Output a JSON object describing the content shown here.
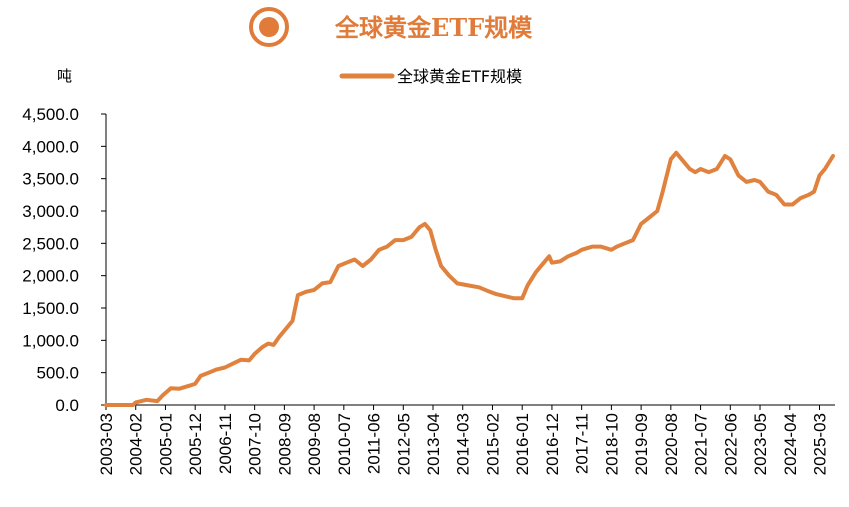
{
  "header": {
    "title": "全球黄金ETF规模",
    "accent_color": "#E07B39",
    "icon": "target-circle-icon"
  },
  "chart_data": {
    "type": "line",
    "title": "全球黄金ETF规模",
    "unit": "吨",
    "xlabel": "",
    "ylabel": "",
    "ylim": [
      0,
      4500
    ],
    "yticks": [
      "4,500.0",
      "4,000.0",
      "3,500.0",
      "3,000.0",
      "2,500.0",
      "2,000.0",
      "1,500.0",
      "1,000.0",
      "500.0",
      "0.0"
    ],
    "xticks": [
      "2003-03",
      "2004-02",
      "2005-01",
      "2005-12",
      "2006-11",
      "2007-10",
      "2008-09",
      "2009-08",
      "2010-07",
      "2011-06",
      "2012-05",
      "2013-04",
      "2014-03",
      "2015-02",
      "2016-01",
      "2016-12",
      "2017-11",
      "2018-10",
      "2019-09",
      "2020-08",
      "2021-07",
      "2022-06",
      "2023-05",
      "2024-04",
      "2025-03"
    ],
    "legend_position": "top",
    "grid": false,
    "series": [
      {
        "name": "全球黄金ETF规模",
        "color": "#E0823E",
        "points": [
          [
            "2003-03",
            0
          ],
          [
            "2004-01",
            0
          ],
          [
            "2004-02",
            40
          ],
          [
            "2004-06",
            80
          ],
          [
            "2004-10",
            60
          ],
          [
            "2004-12",
            150
          ],
          [
            "2005-03",
            260
          ],
          [
            "2005-06",
            250
          ],
          [
            "2005-10",
            300
          ],
          [
            "2005-12",
            330
          ],
          [
            "2006-02",
            450
          ],
          [
            "2006-05",
            500
          ],
          [
            "2006-08",
            550
          ],
          [
            "2006-11",
            580
          ],
          [
            "2007-02",
            640
          ],
          [
            "2007-05",
            700
          ],
          [
            "2007-08",
            690
          ],
          [
            "2007-10",
            790
          ],
          [
            "2008-01",
            900
          ],
          [
            "2008-03",
            950
          ],
          [
            "2008-05",
            930
          ],
          [
            "2008-07",
            1050
          ],
          [
            "2008-09",
            1150
          ],
          [
            "2008-12",
            1300
          ],
          [
            "2009-02",
            1700
          ],
          [
            "2009-05",
            1750
          ],
          [
            "2009-08",
            1780
          ],
          [
            "2009-11",
            1880
          ],
          [
            "2010-02",
            1900
          ],
          [
            "2010-05",
            2150
          ],
          [
            "2010-08",
            2200
          ],
          [
            "2010-11",
            2250
          ],
          [
            "2011-02",
            2150
          ],
          [
            "2011-05",
            2250
          ],
          [
            "2011-08",
            2400
          ],
          [
            "2011-11",
            2450
          ],
          [
            "2012-02",
            2550
          ],
          [
            "2012-05",
            2550
          ],
          [
            "2012-08",
            2600
          ],
          [
            "2012-11",
            2750
          ],
          [
            "2013-01",
            2800
          ],
          [
            "2013-03",
            2700
          ],
          [
            "2013-05",
            2400
          ],
          [
            "2013-07",
            2150
          ],
          [
            "2013-10",
            2000
          ],
          [
            "2014-01",
            1880
          ],
          [
            "2014-05",
            1850
          ],
          [
            "2014-09",
            1820
          ],
          [
            "2015-01",
            1750
          ],
          [
            "2015-03",
            1720
          ],
          [
            "2015-07",
            1680
          ],
          [
            "2015-10",
            1650
          ],
          [
            "2016-01",
            1650
          ],
          [
            "2016-03",
            1850
          ],
          [
            "2016-06",
            2050
          ],
          [
            "2016-09",
            2200
          ],
          [
            "2016-11",
            2300
          ],
          [
            "2016-12",
            2200
          ],
          [
            "2017-03",
            2220
          ],
          [
            "2017-06",
            2300
          ],
          [
            "2017-09",
            2350
          ],
          [
            "2017-11",
            2400
          ],
          [
            "2018-03",
            2450
          ],
          [
            "2018-06",
            2450
          ],
          [
            "2018-10",
            2400
          ],
          [
            "2018-12",
            2450
          ],
          [
            "2019-03",
            2500
          ],
          [
            "2019-06",
            2550
          ],
          [
            "2019-09",
            2800
          ],
          [
            "2019-12",
            2900
          ],
          [
            "2020-03",
            3000
          ],
          [
            "2020-05",
            3300
          ],
          [
            "2020-08",
            3800
          ],
          [
            "2020-10",
            3900
          ],
          [
            "2020-12",
            3800
          ],
          [
            "2021-03",
            3650
          ],
          [
            "2021-05",
            3600
          ],
          [
            "2021-07",
            3650
          ],
          [
            "2021-10",
            3600
          ],
          [
            "2022-01",
            3650
          ],
          [
            "2022-04",
            3850
          ],
          [
            "2022-06",
            3800
          ],
          [
            "2022-09",
            3550
          ],
          [
            "2022-12",
            3450
          ],
          [
            "2023-03",
            3480
          ],
          [
            "2023-05",
            3450
          ],
          [
            "2023-08",
            3300
          ],
          [
            "2023-11",
            3250
          ],
          [
            "2024-02",
            3100
          ],
          [
            "2024-05",
            3100
          ],
          [
            "2024-08",
            3200
          ],
          [
            "2024-11",
            3250
          ],
          [
            "2025-01",
            3300
          ],
          [
            "2025-03",
            3550
          ],
          [
            "2025-05",
            3650
          ],
          [
            "2025-08",
            3850
          ]
        ]
      }
    ]
  }
}
